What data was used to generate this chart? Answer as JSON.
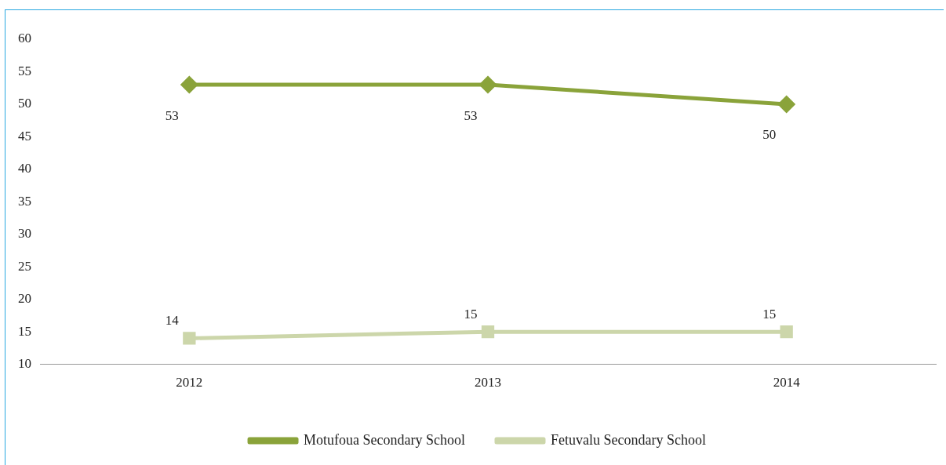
{
  "chart_data": {
    "type": "line",
    "categories": [
      "2012",
      "2013",
      "2014"
    ],
    "series": [
      {
        "name": "Motufoua Secondary School",
        "color": "#8aa33a",
        "values": [
          53,
          53,
          50
        ],
        "marker": "diamond"
      },
      {
        "name": "Fetuvalu Secondary School",
        "color": "#ccd6aa",
        "values": [
          14,
          15,
          15
        ],
        "marker": "square"
      }
    ],
    "ylim": [
      10,
      60
    ],
    "yticks": [
      10,
      15,
      20,
      25,
      30,
      35,
      40,
      45,
      50,
      55,
      60
    ],
    "grid": false,
    "legend": "bottom",
    "data_labels": true
  }
}
